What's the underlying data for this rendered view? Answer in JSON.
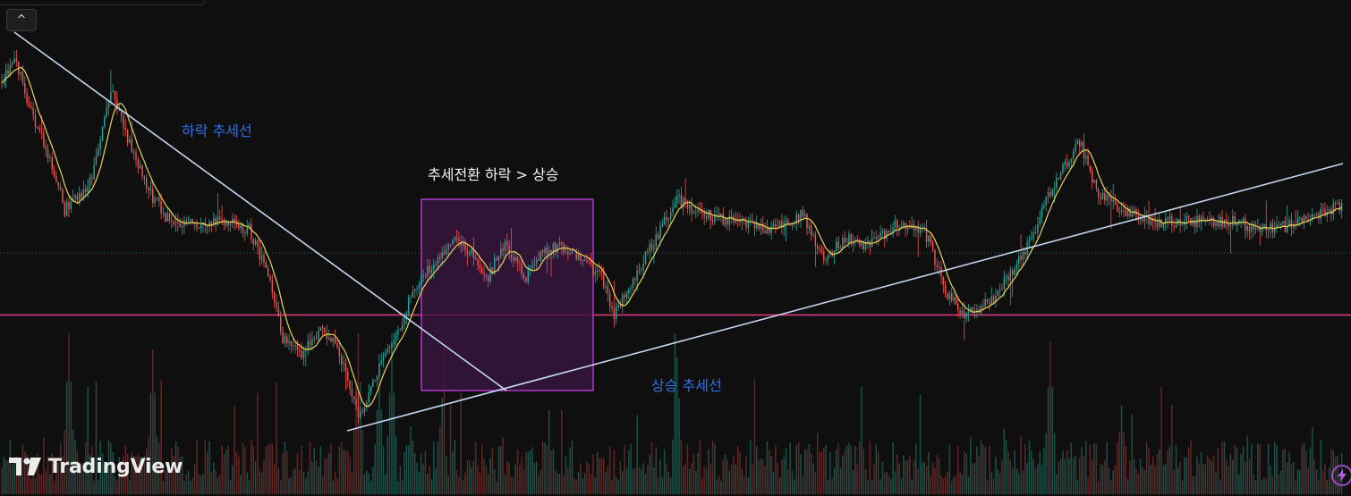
{
  "branding": {
    "logo_text": "TradingView",
    "logo_icon": "tradingview-logo-icon"
  },
  "toolbar": {
    "collapse_icon": "chevron-up-icon",
    "bolt_icon": "lightning-icon"
  },
  "annotations": {
    "downtrend_label": "하락 추세선",
    "reversal_label": "추세전환 하락 > 상승",
    "uptrend_label": "상승 추세선"
  },
  "colors": {
    "background": "#0f0f0f",
    "up": "#26a69a",
    "down": "#ef5350",
    "ma": "#e8d44d",
    "trendline": "#c5d6ee",
    "support": "#e0357a",
    "box_border": "#b036c8",
    "box_fill": "#3a1640",
    "label_blue": "#2f6fe6"
  },
  "chart_data": {
    "type": "candlestick",
    "title": "",
    "xlabel": "",
    "ylabel": "",
    "grid": false,
    "legend": "none",
    "ylim": [
      0,
      100
    ],
    "ma_period": 8,
    "key_points": [
      [
        0,
        88
      ],
      [
        6,
        95
      ],
      [
        14,
        80
      ],
      [
        22,
        70
      ],
      [
        30,
        55
      ],
      [
        42,
        62
      ],
      [
        52,
        86
      ],
      [
        60,
        74
      ],
      [
        70,
        60
      ],
      [
        80,
        52
      ],
      [
        92,
        52
      ],
      [
        108,
        52
      ],
      [
        118,
        50
      ],
      [
        126,
        40
      ],
      [
        134,
        22
      ],
      [
        144,
        18
      ],
      [
        152,
        25
      ],
      [
        160,
        20
      ],
      [
        170,
        2
      ],
      [
        178,
        12
      ],
      [
        186,
        20
      ],
      [
        196,
        34
      ],
      [
        206,
        42
      ],
      [
        216,
        48
      ],
      [
        224,
        44
      ],
      [
        232,
        38
      ],
      [
        240,
        46
      ],
      [
        250,
        38
      ],
      [
        258,
        44
      ],
      [
        266,
        46
      ],
      [
        276,
        42
      ],
      [
        286,
        38
      ],
      [
        292,
        28
      ],
      [
        300,
        36
      ],
      [
        312,
        48
      ],
      [
        322,
        58
      ],
      [
        334,
        54
      ],
      [
        350,
        52
      ],
      [
        366,
        50
      ],
      [
        382,
        54
      ],
      [
        392,
        42
      ],
      [
        402,
        48
      ],
      [
        414,
        46
      ],
      [
        428,
        52
      ],
      [
        440,
        50
      ],
      [
        450,
        34
      ],
      [
        460,
        28
      ],
      [
        472,
        32
      ],
      [
        488,
        44
      ],
      [
        500,
        60
      ],
      [
        514,
        73
      ],
      [
        522,
        60
      ],
      [
        534,
        55
      ],
      [
        550,
        52
      ],
      [
        566,
        52
      ],
      [
        586,
        52
      ],
      [
        604,
        50
      ],
      [
        620,
        52
      ],
      [
        636,
        56
      ]
    ],
    "volume": {
      "base": 0.2,
      "spikes": [
        [
          32,
          1.0
        ],
        [
          72,
          0.9
        ],
        [
          170,
          1.0
        ],
        [
          180,
          0.75
        ],
        [
          186,
          0.9
        ],
        [
          210,
          0.6
        ],
        [
          322,
          0.85
        ],
        [
          500,
          0.95
        ],
        [
          534,
          0.55
        ]
      ]
    },
    "support_level": 28,
    "dotted_level": 44
  }
}
